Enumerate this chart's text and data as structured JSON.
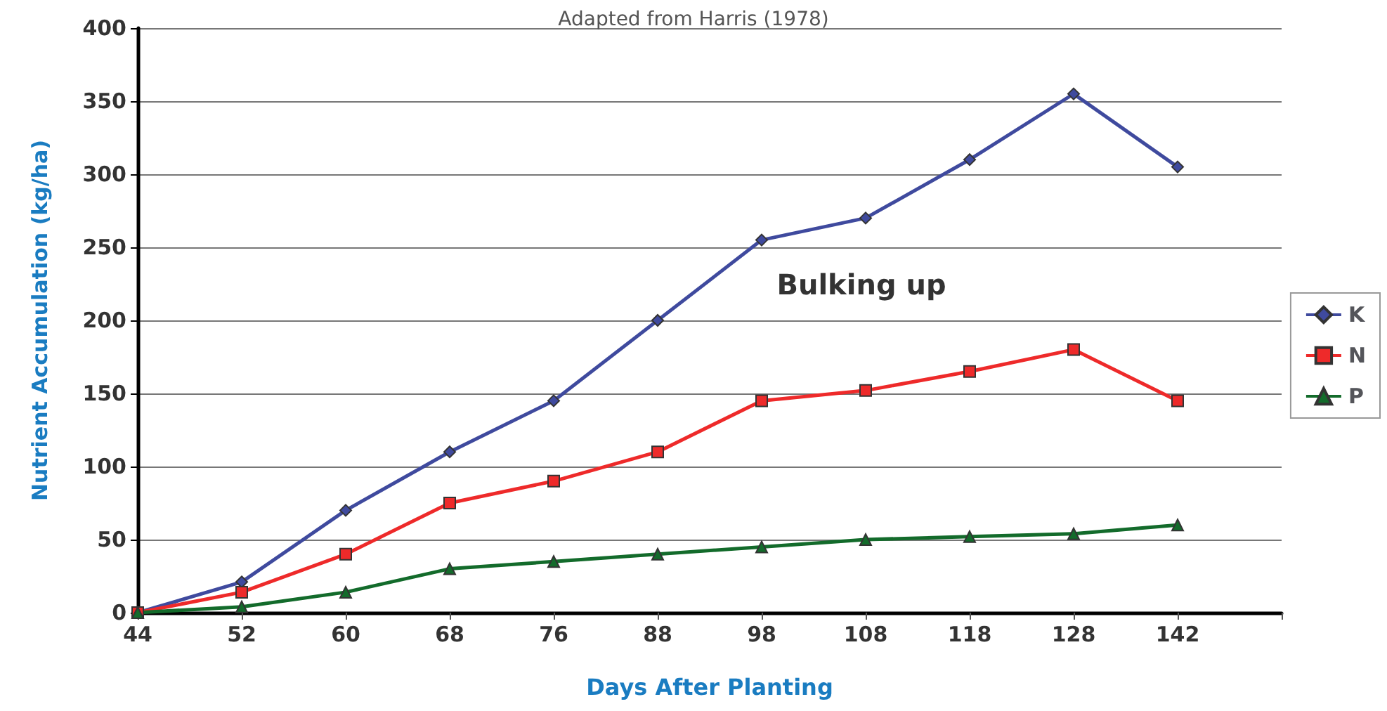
{
  "chart_data": {
    "type": "line",
    "title": "Adapted from Harris (1978)",
    "xlabel": "Days After Planting",
    "ylabel": "Nutrient Accumulation (kg/ha)",
    "categories": [
      "44",
      "52",
      "60",
      "68",
      "76",
      "88",
      "98",
      "108",
      "118",
      "128",
      "142",
      null
    ],
    "series": [
      {
        "name": "K",
        "color": "#3f4a9e",
        "marker": "diamond",
        "values": [
          0,
          21,
          70,
          110,
          145,
          200,
          255,
          270,
          310,
          355,
          305,
          null
        ]
      },
      {
        "name": "N",
        "color": "#ee2a2a",
        "marker": "square",
        "values": [
          0,
          14,
          40,
          75,
          90,
          110,
          145,
          152,
          165,
          180,
          145,
          null
        ]
      },
      {
        "name": "P",
        "color": "#136b2b",
        "marker": "triangle",
        "values": [
          0,
          4,
          14,
          30,
          35,
          40,
          45,
          50,
          52,
          54,
          60,
          null
        ]
      }
    ],
    "annotations": [
      "Bulking up"
    ],
    "ylim": [
      0,
      400
    ],
    "yticks": [
      0,
      50,
      100,
      150,
      200,
      250,
      300,
      350,
      400
    ],
    "grid": "y",
    "legend": "right"
  }
}
